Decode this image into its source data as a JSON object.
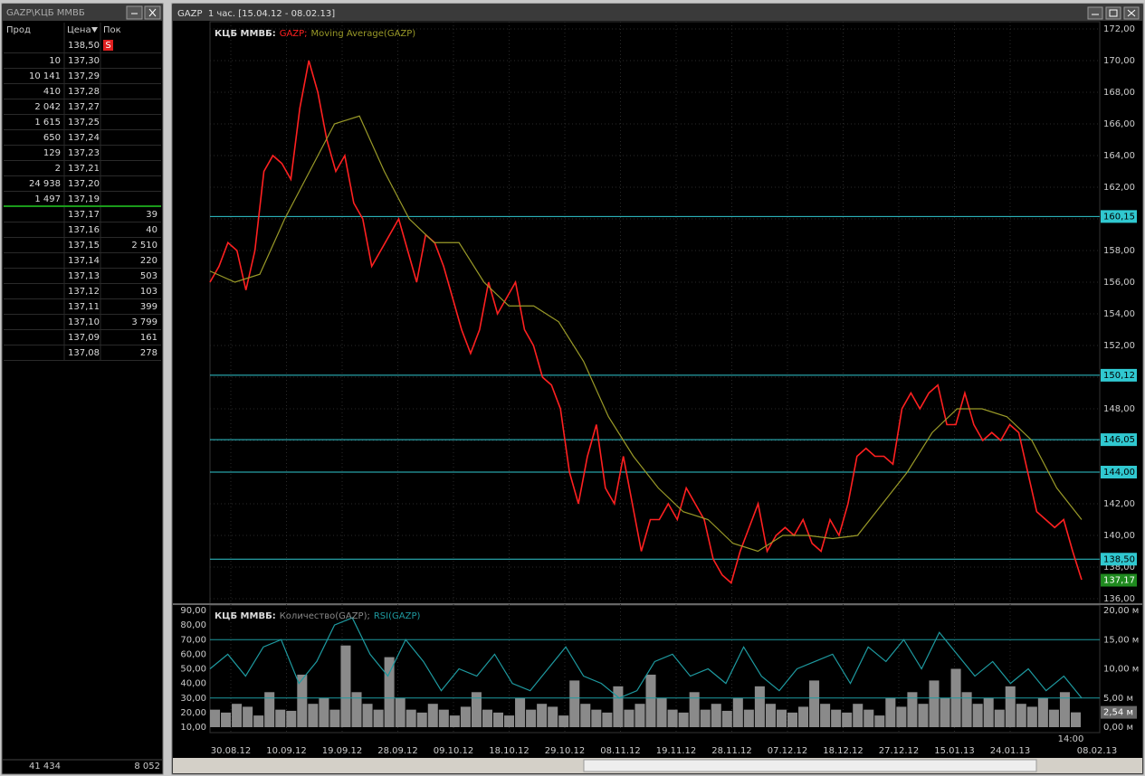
{
  "order_book": {
    "title": "GAZP\\КЦБ ММВБ",
    "headers": [
      "Прод",
      "Цена",
      "Пок"
    ],
    "rows": [
      [
        "",
        "138,50",
        "S"
      ],
      [
        "10",
        "137,30",
        ""
      ],
      [
        "10 141",
        "137,29",
        ""
      ],
      [
        "410",
        "137,28",
        ""
      ],
      [
        "2 042",
        "137,27",
        ""
      ],
      [
        "1 615",
        "137,25",
        ""
      ],
      [
        "650",
        "137,24",
        ""
      ],
      [
        "129",
        "137,23",
        ""
      ],
      [
        "2",
        "137,21",
        ""
      ],
      [
        "24 938",
        "137,20",
        ""
      ],
      [
        "1 497",
        "137,19",
        ""
      ],
      [
        "",
        "137,17",
        "39"
      ],
      [
        "",
        "137,16",
        "40"
      ],
      [
        "",
        "137,15",
        "2 510"
      ],
      [
        "",
        "137,14",
        "220"
      ],
      [
        "",
        "137,13",
        "503"
      ],
      [
        "",
        "137,12",
        "103"
      ],
      [
        "",
        "137,11",
        "399"
      ],
      [
        "",
        "137,10",
        "3 799"
      ],
      [
        "",
        "137,09",
        "161"
      ],
      [
        "",
        "137,08",
        "278"
      ]
    ],
    "totals": [
      "41 434",
      "8 052"
    ]
  },
  "window": {
    "title": "GAZP  1 час. [15.04.12 - 08.02.13]"
  },
  "price_chart": {
    "type": "line",
    "legend_prefix": "КЦБ ММВБ:",
    "series": [
      {
        "name": "GAZP;",
        "color": "#ff2020",
        "values": [
          156,
          157,
          158.5,
          158,
          155.5,
          158,
          163,
          164,
          163.5,
          162.5,
          167,
          170,
          168,
          165,
          163,
          164,
          161,
          160,
          157,
          158,
          159,
          160,
          158,
          156,
          159,
          158.5,
          157,
          155,
          153,
          151.5,
          153,
          156,
          154,
          155,
          156,
          153,
          152,
          150,
          149.5,
          148,
          144,
          142,
          145,
          147,
          143,
          142,
          145,
          142,
          139,
          141,
          141,
          142,
          141,
          143,
          142,
          141,
          138.5,
          137.5,
          137,
          139,
          140.5,
          142,
          139,
          140,
          140.5,
          140,
          141,
          139.5,
          139,
          141,
          140,
          142,
          145,
          145.5,
          145,
          145,
          144.5,
          148,
          149,
          148,
          149,
          149.5,
          147,
          147,
          149,
          147,
          146,
          146.5,
          146,
          147,
          146.5,
          144,
          141.5,
          141,
          140.5,
          141,
          139,
          137.2
        ]
      },
      {
        "name": "Moving Average(GAZP)",
        "color": "#9a9a28",
        "values": [
          156.7,
          156,
          156.5,
          160,
          163,
          166,
          166.5,
          163,
          160,
          158.5,
          158.5,
          156,
          154.5,
          154.5,
          153.5,
          151,
          147.5,
          145,
          143,
          141.5,
          141,
          139.5,
          139,
          140,
          140,
          139.8,
          140,
          142,
          144,
          146.5,
          148,
          148,
          147.5,
          146,
          143,
          141
        ]
      }
    ],
    "ylim": [
      136,
      172
    ],
    "yticks": [
      {
        "value": 136,
        "label": "136,00"
      },
      {
        "value": 138,
        "label": "138,00"
      },
      {
        "value": 140,
        "label": "140,00"
      },
      {
        "value": 142,
        "label": "142,00"
      },
      {
        "value": 144,
        "label": "144,00"
      },
      {
        "value": 146,
        "label": "146,00"
      },
      {
        "value": 148,
        "label": "148,00"
      },
      {
        "value": 150,
        "label": "150,00"
      },
      {
        "value": 152,
        "label": "152,00"
      },
      {
        "value": 154,
        "label": "154,00"
      },
      {
        "value": 156,
        "label": "156,00"
      },
      {
        "value": 158,
        "label": "158,00"
      },
      {
        "value": 160,
        "label": "160,00"
      },
      {
        "value": 162,
        "label": "162,00"
      },
      {
        "value": 164,
        "label": "164,00"
      },
      {
        "value": 166,
        "label": "166,00"
      },
      {
        "value": 168,
        "label": "168,00"
      },
      {
        "value": 170,
        "label": "170,00"
      },
      {
        "value": 172,
        "label": "172,00"
      }
    ],
    "levels": [
      {
        "value": 160.15,
        "label": "160,15"
      },
      {
        "value": 150.12,
        "label": "150,12"
      },
      {
        "value": 146.05,
        "label": "146,05"
      },
      {
        "value": 144,
        "label": "144,00"
      },
      {
        "value": 138.5,
        "label": "138,50"
      }
    ],
    "last": {
      "value": 137.17,
      "label": "137,17"
    },
    "grid": true
  },
  "indicator_chart": {
    "type": "line",
    "legend_prefix": "КЦБ ММВБ:",
    "series": [
      {
        "name": "Количество(GAZP);",
        "color": "#8a8a8a",
        "axis": "y2",
        "values": [
          3,
          2.5,
          4,
          3.5,
          2,
          6,
          3,
          2.8,
          9,
          4,
          5,
          3,
          14,
          6,
          4,
          3,
          12,
          5,
          3,
          2.5,
          4,
          3,
          2,
          3.5,
          6,
          3,
          2.5,
          2,
          5,
          3,
          4,
          3.5,
          2,
          8,
          4,
          3,
          2.5,
          7,
          3,
          4,
          9,
          5,
          3,
          2.5,
          6,
          3,
          4,
          2.8,
          5,
          3,
          7,
          4,
          3,
          2.5,
          3.5,
          8,
          4,
          3,
          2.5,
          4,
          3,
          2,
          5,
          3.5,
          6,
          4,
          8,
          5,
          10,
          6,
          4,
          5,
          3,
          7,
          4,
          3.5,
          5,
          3,
          6,
          2.54
        ]
      },
      {
        "name": "RSI(GAZP)",
        "color": "#1e9aa0",
        "values": [
          50,
          60,
          45,
          65,
          70,
          40,
          55,
          80,
          85,
          60,
          45,
          70,
          55,
          35,
          50,
          45,
          60,
          40,
          35,
          50,
          65,
          45,
          40,
          30,
          35,
          55,
          60,
          45,
          50,
          40,
          65,
          45,
          35,
          50,
          55,
          60,
          40,
          65,
          55,
          70,
          50,
          75,
          60,
          45,
          55,
          40,
          50,
          35,
          45,
          30
        ]
      }
    ],
    "ylim": [
      10,
      90
    ],
    "yticks": [
      {
        "value": 10,
        "label": "10,00"
      },
      {
        "value": 20,
        "label": "20,00"
      },
      {
        "value": 30,
        "label": "30,00"
      },
      {
        "value": 40,
        "label": "40,00"
      },
      {
        "value": 50,
        "label": "50,00"
      },
      {
        "value": 60,
        "label": "60,00"
      },
      {
        "value": 70,
        "label": "70,00"
      },
      {
        "value": 80,
        "label": "80,00"
      },
      {
        "value": 90,
        "label": "90,00"
      }
    ],
    "y2lim": [
      0,
      20
    ],
    "y2ticks": [
      {
        "value": 0,
        "label": "0,00 м"
      },
      {
        "value": 5,
        "label": "5,00 м"
      },
      {
        "value": 10,
        "label": "10,00 м"
      },
      {
        "value": 15,
        "label": "15,00 м"
      },
      {
        "value": 20,
        "label": "20,00 м"
      }
    ],
    "levels": [
      70,
      30
    ],
    "last": {
      "value": 2.54,
      "label": "2,54 м"
    }
  },
  "x_axis": {
    "categories": [
      "30.08.12",
      "10.09.12",
      "19.09.12",
      "28.09.12",
      "09.10.12",
      "18.10.12",
      "29.10.12",
      "08.11.12",
      "19.11.12",
      "28.11.12",
      "07.12.12",
      "18.12.12",
      "27.12.12",
      "15.01.13",
      "24.01.13",
      "08.02.13"
    ],
    "time_label": "14:00"
  }
}
